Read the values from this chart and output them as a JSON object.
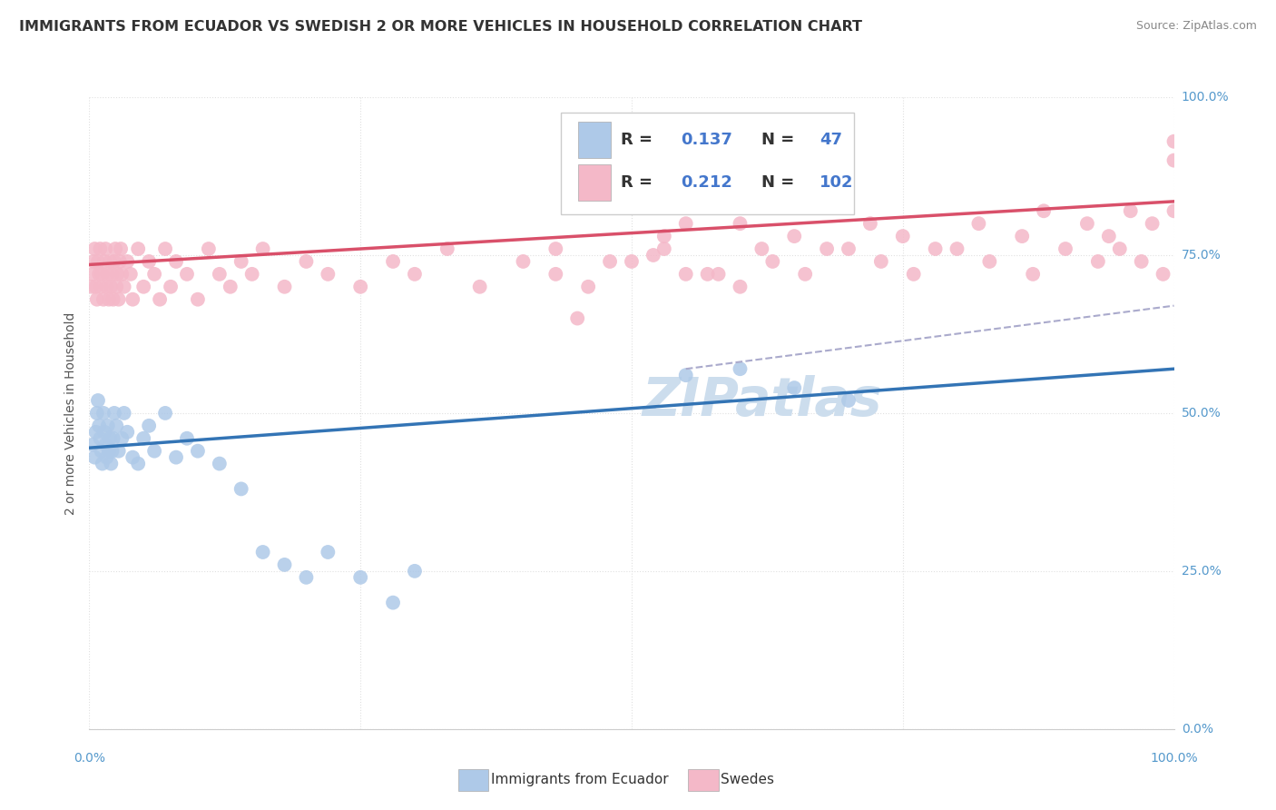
{
  "title": "IMMIGRANTS FROM ECUADOR VS SWEDISH 2 OR MORE VEHICLES IN HOUSEHOLD CORRELATION CHART",
  "source": "Source: ZipAtlas.com",
  "ylabel": "2 or more Vehicles in Household",
  "legend_label1": "Immigrants from Ecuador",
  "legend_label2": "Swedes",
  "blue_color": "#aec9e8",
  "blue_line_color": "#3374b5",
  "pink_color": "#f4b8c8",
  "pink_line_color": "#d9506a",
  "dash_color": "#aaaacc",
  "r_color": "#4477cc",
  "text_color": "#333333",
  "source_color": "#888888",
  "axis_tick_color": "#5599cc",
  "grid_color": "#e0e0e0",
  "watermark_color": "#ccdded",
  "title_fontsize": 11.5,
  "source_fontsize": 9,
  "tick_fontsize": 10,
  "legend_fontsize": 13,
  "ylabel_fontsize": 10,
  "xlim": [
    0,
    100
  ],
  "ylim": [
    0,
    100
  ],
  "xticks": [
    0,
    25,
    50,
    75,
    100
  ],
  "yticks": [
    0,
    25,
    50,
    75,
    100
  ],
  "blue_trend": [
    0.0,
    44.5,
    100.0,
    57.0
  ],
  "pink_trend": [
    0.0,
    73.5,
    100.0,
    83.5
  ],
  "dash_trend": [
    55.0,
    57.0,
    100.0,
    67.0
  ],
  "blue_x": [
    0.3,
    0.5,
    0.6,
    0.7,
    0.8,
    0.9,
    1.0,
    1.1,
    1.2,
    1.3,
    1.4,
    1.5,
    1.6,
    1.7,
    1.8,
    1.9,
    2.0,
    2.1,
    2.2,
    2.3,
    2.5,
    2.7,
    3.0,
    3.2,
    3.5,
    4.0,
    4.5,
    5.0,
    5.5,
    6.0,
    7.0,
    8.0,
    9.0,
    10.0,
    12.0,
    14.0,
    16.0,
    18.0,
    20.0,
    22.0,
    25.0,
    28.0,
    30.0,
    55.0,
    60.0,
    65.0,
    70.0
  ],
  "blue_y": [
    45,
    43,
    47,
    50,
    52,
    48,
    46,
    44,
    42,
    50,
    47,
    45,
    43,
    48,
    44,
    46,
    42,
    44,
    46,
    50,
    48,
    44,
    46,
    50,
    47,
    43,
    42,
    46,
    48,
    44,
    50,
    43,
    46,
    44,
    42,
    38,
    28,
    26,
    24,
    28,
    24,
    20,
    25,
    56,
    57,
    54,
    52
  ],
  "pink_x": [
    0.2,
    0.3,
    0.4,
    0.5,
    0.6,
    0.7,
    0.8,
    0.9,
    1.0,
    1.1,
    1.2,
    1.3,
    1.4,
    1.5,
    1.6,
    1.7,
    1.8,
    1.9,
    2.0,
    2.1,
    2.2,
    2.3,
    2.4,
    2.5,
    2.6,
    2.7,
    2.8,
    2.9,
    3.0,
    3.2,
    3.5,
    3.8,
    4.0,
    4.5,
    5.0,
    5.5,
    6.0,
    6.5,
    7.0,
    7.5,
    8.0,
    9.0,
    10.0,
    11.0,
    12.0,
    13.0,
    14.0,
    15.0,
    16.0,
    18.0,
    20.0,
    22.0,
    25.0,
    28.0,
    30.0,
    33.0,
    36.0,
    40.0,
    43.0,
    46.0,
    50.0,
    53.0,
    57.0,
    60.0,
    63.0,
    66.0,
    70.0,
    73.0,
    76.0,
    80.0,
    83.0,
    87.0,
    90.0,
    93.0,
    95.0,
    97.0,
    99.0,
    100.0,
    45.0,
    52.0,
    55.0,
    58.0,
    62.0,
    55.0,
    43.0,
    48.0,
    53.0,
    60.0,
    65.0,
    68.0,
    72.0,
    75.0,
    78.0,
    82.0,
    86.0,
    88.0,
    92.0,
    94.0,
    96.0,
    98.0,
    100.0,
    100.0
  ],
  "pink_y": [
    70,
    72,
    74,
    76,
    70,
    68,
    74,
    72,
    76,
    70,
    72,
    68,
    74,
    76,
    70,
    72,
    68,
    74,
    70,
    72,
    68,
    74,
    76,
    70,
    72,
    68,
    74,
    76,
    72,
    70,
    74,
    72,
    68,
    76,
    70,
    74,
    72,
    68,
    76,
    70,
    74,
    72,
    68,
    76,
    72,
    70,
    74,
    72,
    76,
    70,
    74,
    72,
    70,
    74,
    72,
    76,
    70,
    74,
    72,
    70,
    74,
    76,
    72,
    70,
    74,
    72,
    76,
    74,
    72,
    76,
    74,
    72,
    76,
    74,
    76,
    74,
    72,
    93,
    65,
    75,
    72,
    72,
    76,
    80,
    76,
    74,
    78,
    80,
    78,
    76,
    80,
    78,
    76,
    80,
    78,
    82,
    80,
    78,
    82,
    80,
    82,
    90
  ]
}
